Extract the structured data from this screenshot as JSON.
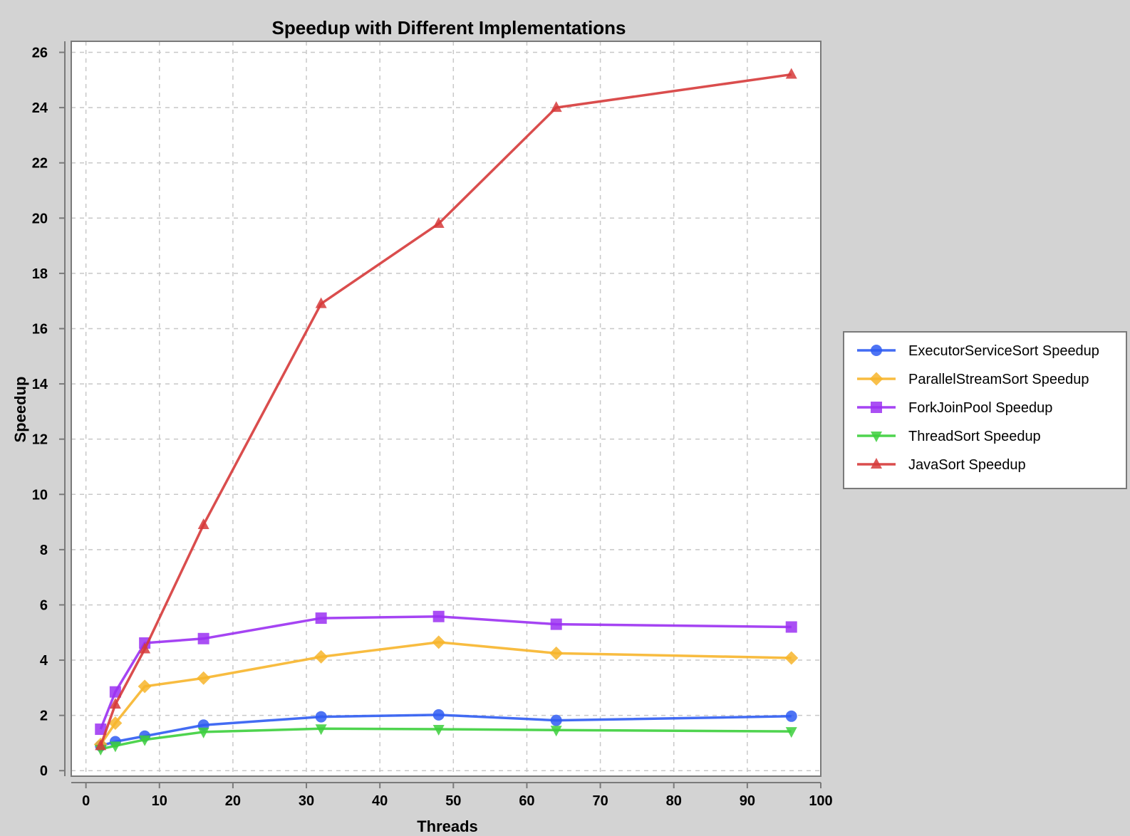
{
  "chart_data": {
    "type": "line",
    "title": "Speedup with Different Implementations",
    "xlabel": "Threads",
    "ylabel": "Speedup",
    "xlim": [
      -2,
      100
    ],
    "ylim": [
      -0.2,
      26.4
    ],
    "xticks": [
      0,
      10,
      20,
      30,
      40,
      50,
      60,
      70,
      80,
      90,
      100
    ],
    "yticks": [
      0,
      2,
      4,
      6,
      8,
      10,
      12,
      14,
      16,
      18,
      20,
      22,
      24,
      26
    ],
    "grid": true,
    "legend_position": "right",
    "x": [
      2,
      4,
      8,
      16,
      32,
      48,
      64,
      96
    ],
    "series": [
      {
        "name": "ExecutorServiceSort Speedup",
        "color": "#2f5cf2",
        "marker": "circle",
        "values": [
          0.9,
          1.05,
          1.25,
          1.65,
          1.95,
          2.02,
          1.82,
          1.97
        ]
      },
      {
        "name": "ParallelStreamSort Speedup",
        "color": "#f7b52b",
        "marker": "diamond",
        "values": [
          0.95,
          1.72,
          3.05,
          3.35,
          4.12,
          4.65,
          4.25,
          4.08
        ]
      },
      {
        "name": "ForkJoinPool Speedup",
        "color": "#9b30f2",
        "marker": "square",
        "values": [
          1.5,
          2.85,
          4.62,
          4.78,
          5.52,
          5.58,
          5.3,
          5.2
        ]
      },
      {
        "name": "ThreadSort Speedup",
        "color": "#3ccf3c",
        "marker": "triangle-down",
        "values": [
          0.78,
          0.9,
          1.12,
          1.4,
          1.52,
          1.5,
          1.47,
          1.42
        ]
      },
      {
        "name": "JavaSort Speedup",
        "color": "#d63a3a",
        "marker": "triangle-up",
        "values": [
          0.9,
          2.4,
          4.4,
          8.9,
          16.9,
          19.8,
          24.0,
          25.2
        ]
      }
    ]
  }
}
